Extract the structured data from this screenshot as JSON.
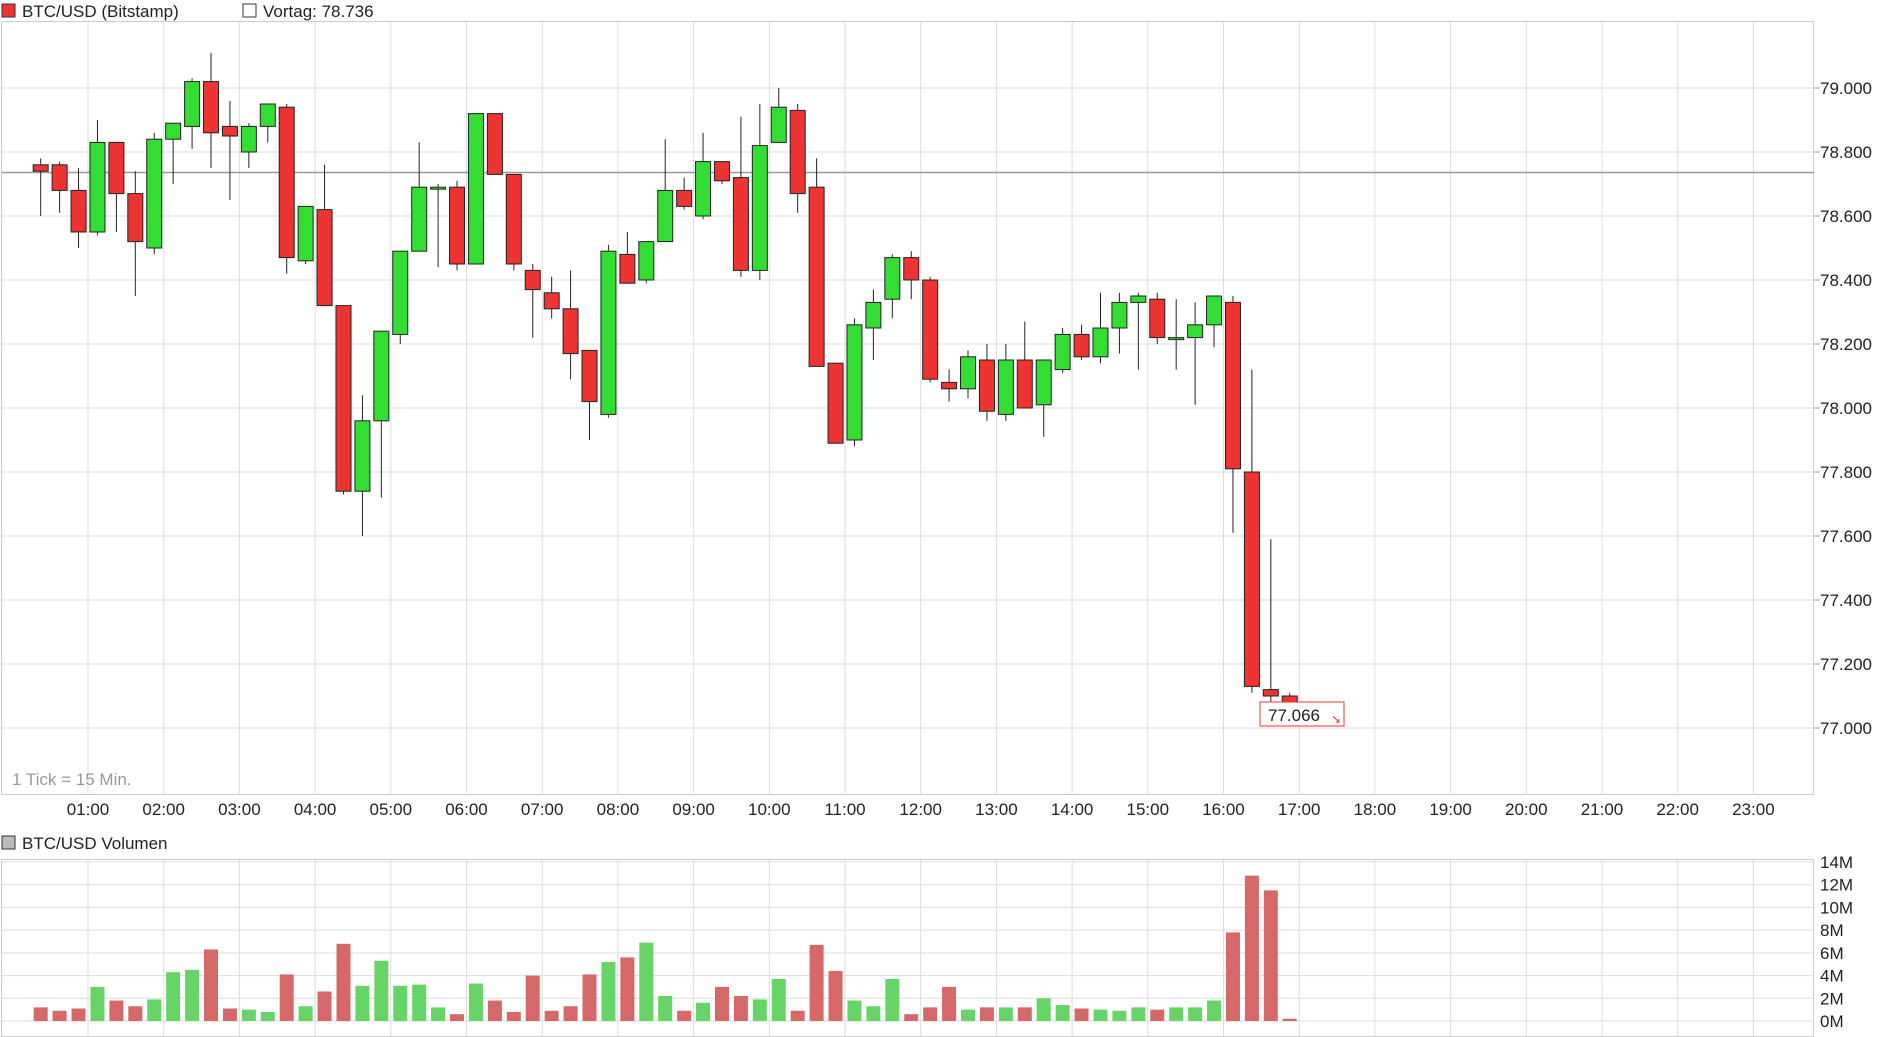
{
  "colors": {
    "up": "#33dd33",
    "down": "#ee3333",
    "up_vol": "#66d466",
    "down_vol": "#d66868",
    "grid": "#dddddd",
    "ref_line": "#999999"
  },
  "chart_data": [
    {
      "type": "candlestick",
      "title": "BTC/USD (Bitstamp)",
      "reference_label": "Vortag: 78.736",
      "reference_value": 78.736,
      "note": "1 Tick = 15 Min.",
      "last_value_label": "77.066",
      "x_labels": [
        "01:00",
        "02:00",
        "03:00",
        "04:00",
        "05:00",
        "06:00",
        "07:00",
        "08:00",
        "09:00",
        "10:00",
        "11:00",
        "12:00",
        "13:00",
        "14:00",
        "15:00",
        "16:00",
        "17:00",
        "18:00",
        "19:00",
        "20:00",
        "21:00",
        "22:00",
        "23:00"
      ],
      "y_ticks": [
        "79.000",
        "78.800",
        "78.600",
        "78.400",
        "78.200",
        "78.000",
        "77.800",
        "77.600",
        "77.400",
        "77.200",
        "77.000"
      ],
      "ylim": [
        76.8,
        79.12
      ],
      "interval_minutes": 15,
      "candles": [
        {
          "t": "00:30",
          "o": 78.76,
          "h": 78.78,
          "l": 78.6,
          "c": 78.74
        },
        {
          "t": "00:45",
          "o": 78.76,
          "h": 78.77,
          "l": 78.61,
          "c": 78.68
        },
        {
          "t": "01:00",
          "o": 78.68,
          "h": 78.75,
          "l": 78.5,
          "c": 78.55
        },
        {
          "t": "01:15",
          "o": 78.55,
          "h": 78.9,
          "l": 78.54,
          "c": 78.83
        },
        {
          "t": "01:30",
          "o": 78.83,
          "h": 78.83,
          "l": 78.55,
          "c": 78.67
        },
        {
          "t": "01:45",
          "o": 78.67,
          "h": 78.74,
          "l": 78.35,
          "c": 78.52
        },
        {
          "t": "02:00",
          "o": 78.5,
          "h": 78.86,
          "l": 78.48,
          "c": 78.84
        },
        {
          "t": "02:15",
          "o": 78.84,
          "h": 78.89,
          "l": 78.7,
          "c": 78.89
        },
        {
          "t": "02:30",
          "o": 78.88,
          "h": 79.03,
          "l": 78.81,
          "c": 79.02
        },
        {
          "t": "02:45",
          "o": 79.02,
          "h": 79.11,
          "l": 78.75,
          "c": 78.86
        },
        {
          "t": "03:00",
          "o": 78.88,
          "h": 78.96,
          "l": 78.65,
          "c": 78.85
        },
        {
          "t": "03:15",
          "o": 78.8,
          "h": 78.89,
          "l": 78.75,
          "c": 78.88
        },
        {
          "t": "03:30",
          "o": 78.88,
          "h": 78.95,
          "l": 78.83,
          "c": 78.95
        },
        {
          "t": "03:45",
          "o": 78.94,
          "h": 78.95,
          "l": 78.42,
          "c": 78.47
        },
        {
          "t": "04:00",
          "o": 78.46,
          "h": 78.63,
          "l": 78.45,
          "c": 78.63
        },
        {
          "t": "04:15",
          "o": 78.62,
          "h": 78.76,
          "l": 78.33,
          "c": 78.32
        },
        {
          "t": "04:30",
          "o": 78.32,
          "h": 78.32,
          "l": 77.73,
          "c": 77.74
        },
        {
          "t": "04:45",
          "o": 77.74,
          "h": 78.04,
          "l": 77.6,
          "c": 77.96
        },
        {
          "t": "05:00",
          "o": 77.96,
          "h": 78.24,
          "l": 77.72,
          "c": 78.24
        },
        {
          "t": "05:15",
          "o": 78.23,
          "h": 78.49,
          "l": 78.2,
          "c": 78.49
        },
        {
          "t": "05:30",
          "o": 78.49,
          "h": 78.83,
          "l": 78.49,
          "c": 78.69
        },
        {
          "t": "05:45",
          "o": 78.69,
          "h": 78.7,
          "l": 78.44,
          "c": 78.69
        },
        {
          "t": "06:00",
          "o": 78.69,
          "h": 78.71,
          "l": 78.43,
          "c": 78.45
        },
        {
          "t": "06:15",
          "o": 78.45,
          "h": 78.92,
          "l": 78.45,
          "c": 78.92
        },
        {
          "t": "06:30",
          "o": 78.92,
          "h": 78.92,
          "l": 78.73,
          "c": 78.73
        },
        {
          "t": "06:45",
          "o": 78.73,
          "h": 78.73,
          "l": 78.43,
          "c": 78.45
        },
        {
          "t": "07:00",
          "o": 78.43,
          "h": 78.45,
          "l": 78.22,
          "c": 78.37
        },
        {
          "t": "07:15",
          "o": 78.36,
          "h": 78.41,
          "l": 78.28,
          "c": 78.31
        },
        {
          "t": "07:30",
          "o": 78.31,
          "h": 78.43,
          "l": 78.09,
          "c": 78.17
        },
        {
          "t": "07:45",
          "o": 78.18,
          "h": 78.18,
          "l": 77.9,
          "c": 78.02
        },
        {
          "t": "08:00",
          "o": 77.98,
          "h": 78.51,
          "l": 77.97,
          "c": 78.49
        },
        {
          "t": "08:15",
          "o": 78.48,
          "h": 78.55,
          "l": 78.39,
          "c": 78.39
        },
        {
          "t": "08:30",
          "o": 78.4,
          "h": 78.52,
          "l": 78.39,
          "c": 78.52
        },
        {
          "t": "08:45",
          "o": 78.52,
          "h": 78.84,
          "l": 78.52,
          "c": 78.68
        },
        {
          "t": "09:00",
          "o": 78.68,
          "h": 78.72,
          "l": 78.62,
          "c": 78.63
        },
        {
          "t": "09:15",
          "o": 78.6,
          "h": 78.86,
          "l": 78.59,
          "c": 78.77
        },
        {
          "t": "09:30",
          "o": 78.77,
          "h": 78.77,
          "l": 78.7,
          "c": 78.71
        },
        {
          "t": "09:45",
          "o": 78.72,
          "h": 78.91,
          "l": 78.41,
          "c": 78.43
        },
        {
          "t": "10:00",
          "o": 78.43,
          "h": 78.95,
          "l": 78.4,
          "c": 78.82
        },
        {
          "t": "10:15",
          "o": 78.83,
          "h": 79.0,
          "l": 78.83,
          "c": 78.94
        },
        {
          "t": "10:30",
          "o": 78.93,
          "h": 78.95,
          "l": 78.61,
          "c": 78.67
        },
        {
          "t": "10:45",
          "o": 78.69,
          "h": 78.78,
          "l": 78.13,
          "c": 78.13
        },
        {
          "t": "11:00",
          "o": 78.14,
          "h": 78.13,
          "l": 77.89,
          "c": 77.89
        },
        {
          "t": "11:15",
          "o": 77.9,
          "h": 78.28,
          "l": 77.88,
          "c": 78.26
        },
        {
          "t": "11:30",
          "o": 78.25,
          "h": 78.37,
          "l": 78.15,
          "c": 78.33
        },
        {
          "t": "11:45",
          "o": 78.34,
          "h": 78.48,
          "l": 78.28,
          "c": 78.47
        },
        {
          "t": "12:00",
          "o": 78.47,
          "h": 78.49,
          "l": 78.34,
          "c": 78.4
        },
        {
          "t": "12:15",
          "o": 78.4,
          "h": 78.41,
          "l": 78.08,
          "c": 78.09
        },
        {
          "t": "12:30",
          "o": 78.08,
          "h": 78.12,
          "l": 78.02,
          "c": 78.06
        },
        {
          "t": "12:45",
          "o": 78.06,
          "h": 78.18,
          "l": 78.03,
          "c": 78.16
        },
        {
          "t": "13:00",
          "o": 78.15,
          "h": 78.2,
          "l": 77.96,
          "c": 77.99
        },
        {
          "t": "13:15",
          "o": 77.98,
          "h": 78.2,
          "l": 77.96,
          "c": 78.15
        },
        {
          "t": "13:30",
          "o": 78.15,
          "h": 78.27,
          "l": 78.0,
          "c": 78.0
        },
        {
          "t": "13:45",
          "o": 78.01,
          "h": 78.15,
          "l": 77.91,
          "c": 78.15
        },
        {
          "t": "14:00",
          "o": 78.12,
          "h": 78.25,
          "l": 78.11,
          "c": 78.23
        },
        {
          "t": "14:15",
          "o": 78.23,
          "h": 78.26,
          "l": 78.15,
          "c": 78.16
        },
        {
          "t": "14:30",
          "o": 78.16,
          "h": 78.36,
          "l": 78.14,
          "c": 78.25
        },
        {
          "t": "14:45",
          "o": 78.25,
          "h": 78.36,
          "l": 78.17,
          "c": 78.33
        },
        {
          "t": "15:00",
          "o": 78.33,
          "h": 78.36,
          "l": 78.12,
          "c": 78.35
        },
        {
          "t": "15:15",
          "o": 78.34,
          "h": 78.36,
          "l": 78.2,
          "c": 78.22
        },
        {
          "t": "15:30",
          "o": 78.22,
          "h": 78.34,
          "l": 78.12,
          "c": 78.22
        },
        {
          "t": "15:45",
          "o": 78.22,
          "h": 78.33,
          "l": 78.01,
          "c": 78.26
        },
        {
          "t": "16:00",
          "o": 78.26,
          "h": 78.35,
          "l": 78.19,
          "c": 78.35
        },
        {
          "t": "16:15",
          "o": 78.33,
          "h": 78.35,
          "l": 77.61,
          "c": 77.81
        },
        {
          "t": "16:30",
          "o": 77.8,
          "h": 78.12,
          "l": 77.11,
          "c": 77.13
        },
        {
          "t": "16:45",
          "o": 77.12,
          "h": 77.59,
          "l": 77.03,
          "c": 77.1
        },
        {
          "t": "17:00",
          "o": 77.1,
          "h": 77.11,
          "l": 77.06,
          "c": 77.07
        }
      ]
    },
    {
      "type": "bar",
      "title": "BTC/USD Volumen",
      "y_ticks": [
        "14M",
        "12M",
        "10M",
        "8M",
        "6M",
        "4M",
        "2M",
        "0M"
      ],
      "ylim": [
        0,
        14
      ],
      "unit": "M",
      "volumes": [
        1.2,
        0.9,
        1.1,
        3.0,
        1.8,
        1.3,
        1.9,
        4.3,
        4.5,
        6.3,
        1.1,
        1.0,
        0.8,
        4.1,
        1.3,
        2.6,
        6.8,
        3.1,
        5.3,
        3.1,
        3.2,
        1.2,
        0.6,
        3.3,
        1.8,
        0.8,
        4.0,
        0.9,
        1.3,
        4.1,
        5.2,
        5.6,
        6.9,
        2.2,
        0.9,
        1.6,
        3.0,
        2.2,
        1.9,
        3.7,
        0.9,
        6.7,
        4.4,
        1.8,
        1.3,
        3.7,
        0.6,
        1.2,
        3.0,
        1.0,
        1.2,
        1.2,
        1.2,
        2.0,
        1.4,
        1.1,
        1.0,
        0.9,
        1.2,
        1.0,
        1.2,
        1.2,
        1.8,
        7.8,
        12.8,
        11.5,
        0.2
      ]
    }
  ]
}
